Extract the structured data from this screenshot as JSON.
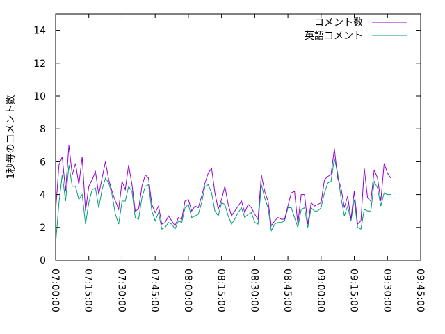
{
  "chart_data": {
    "type": "line",
    "title": "",
    "xlabel": "",
    "ylabel": "1秒毎のコメント数",
    "xlim": [
      "07:00:00",
      "09:45:00"
    ],
    "ylim": [
      0,
      15
    ],
    "x_ticks": [
      "07:00:00",
      "07:15:00",
      "07:30:00",
      "07:45:00",
      "08:00:00",
      "08:15:00",
      "08:30:00",
      "08:45:00",
      "09:00:00",
      "09:15:00",
      "09:30:00",
      "09:45:00"
    ],
    "y_ticks": [
      0,
      2,
      4,
      6,
      8,
      10,
      12,
      14
    ],
    "legend_position": "top-right",
    "grid": false,
    "series": [
      {
        "name": "コメント数",
        "color": "#9400d3",
        "x": [
          "07:00:00",
          "07:01:30",
          "07:03:00",
          "07:04:30",
          "07:06:00",
          "07:07:30",
          "07:09:00",
          "07:10:30",
          "07:12:00",
          "07:13:30",
          "07:15:00",
          "07:16:30",
          "07:18:00",
          "07:19:30",
          "07:21:00",
          "07:22:30",
          "07:24:00",
          "07:25:30",
          "07:27:00",
          "07:28:30",
          "07:30:00",
          "07:31:30",
          "07:33:00",
          "07:34:30",
          "07:36:00",
          "07:37:30",
          "07:39:00",
          "07:40:30",
          "07:42:00",
          "07:43:30",
          "07:45:00",
          "07:46:30",
          "07:48:00",
          "07:49:30",
          "07:51:00",
          "07:52:30",
          "07:54:00",
          "07:55:30",
          "07:57:00",
          "07:58:30",
          "08:00:00",
          "08:01:30",
          "08:03:00",
          "08:04:30",
          "08:06:00",
          "08:07:30",
          "08:09:00",
          "08:10:30",
          "08:12:00",
          "08:13:30",
          "08:15:00",
          "08:16:30",
          "08:18:00",
          "08:19:30",
          "08:21:00",
          "08:22:30",
          "08:24:00",
          "08:25:30",
          "08:27:00",
          "08:28:30",
          "08:30:00",
          "08:31:30",
          "08:33:00",
          "08:34:30",
          "08:36:00",
          "08:37:30",
          "08:39:00",
          "08:40:30",
          "08:42:00",
          "08:43:30",
          "08:45:00",
          "08:46:30",
          "08:48:00",
          "08:49:30",
          "08:51:00",
          "08:52:30",
          "08:54:00",
          "08:55:30",
          "08:57:00",
          "08:58:30",
          "09:00:00",
          "09:01:30",
          "09:03:00",
          "09:04:30",
          "09:06:00",
          "09:07:30",
          "09:09:00",
          "09:10:30",
          "09:12:00",
          "09:13:30",
          "09:15:00",
          "09:16:30",
          "09:18:00",
          "09:19:30",
          "09:21:00",
          "09:22:30",
          "09:24:00",
          "09:25:30",
          "09:27:00",
          "09:28:30",
          "09:30:00",
          "09:31:30"
        ],
        "values": [
          3.0,
          5.8,
          6.3,
          4.2,
          7.0,
          5.2,
          5.9,
          4.6,
          6.3,
          3.0,
          4.5,
          4.9,
          5.4,
          4.0,
          5.0,
          6.0,
          4.9,
          4.2,
          3.6,
          3.1,
          4.8,
          4.3,
          5.8,
          4.6,
          3.0,
          3.1,
          4.5,
          5.2,
          5.0,
          3.4,
          2.9,
          3.3,
          2.2,
          2.3,
          2.7,
          2.4,
          2.1,
          2.6,
          2.5,
          3.6,
          3.7,
          3.0,
          3.3,
          3.2,
          3.9,
          4.7,
          5.3,
          5.6,
          4.1,
          3.1,
          3.7,
          4.5,
          3.4,
          2.7,
          3.0,
          3.3,
          3.6,
          2.9,
          3.4,
          3.2,
          2.8,
          2.5,
          5.2,
          4.2,
          3.6,
          2.1,
          2.4,
          2.6,
          2.5,
          2.5,
          3.3,
          4.1,
          4.2,
          2.2,
          4.0,
          4.0,
          2.2,
          3.5,
          3.3,
          3.4,
          3.5,
          4.9,
          5.1,
          5.2,
          6.8,
          5.0,
          4.4,
          3.2,
          3.9,
          2.5,
          4.2,
          2.2,
          2.4,
          5.6,
          3.8,
          3.6,
          5.5,
          5.0,
          3.6,
          5.9,
          5.3,
          5.0
        ]
      },
      {
        "name": "英語コメント",
        "color": "#009e73",
        "x": [
          "07:00:00",
          "07:01:30",
          "07:03:00",
          "07:04:30",
          "07:06:00",
          "07:07:30",
          "07:09:00",
          "07:10:30",
          "07:12:00",
          "07:13:30",
          "07:15:00",
          "07:16:30",
          "07:18:00",
          "07:19:30",
          "07:21:00",
          "07:22:30",
          "07:24:00",
          "07:25:30",
          "07:27:00",
          "07:28:30",
          "07:30:00",
          "07:31:30",
          "07:33:00",
          "07:34:30",
          "07:36:00",
          "07:37:30",
          "07:39:00",
          "07:40:30",
          "07:42:00",
          "07:43:30",
          "07:45:00",
          "07:46:30",
          "07:48:00",
          "07:49:30",
          "07:51:00",
          "07:52:30",
          "07:54:00",
          "07:55:30",
          "07:57:00",
          "07:58:30",
          "08:00:00",
          "08:01:30",
          "08:03:00",
          "08:04:30",
          "08:06:00",
          "08:07:30",
          "08:09:00",
          "08:10:30",
          "08:12:00",
          "08:13:30",
          "08:15:00",
          "08:16:30",
          "08:18:00",
          "08:19:30",
          "08:21:00",
          "08:22:30",
          "08:24:00",
          "08:25:30",
          "08:27:00",
          "08:28:30",
          "08:30:00",
          "08:31:30",
          "08:33:00",
          "08:34:30",
          "08:36:00",
          "08:37:30",
          "08:39:00",
          "08:40:30",
          "08:42:00",
          "08:43:30",
          "08:45:00",
          "08:46:30",
          "08:48:00",
          "08:49:30",
          "08:51:00",
          "08:52:30",
          "08:54:00",
          "08:55:30",
          "08:57:00",
          "08:58:30",
          "09:00:00",
          "09:01:30",
          "09:03:00",
          "09:04:30",
          "09:06:00",
          "09:07:30",
          "09:09:00",
          "09:10:30",
          "09:12:00",
          "09:13:30",
          "09:15:00",
          "09:16:30",
          "09:18:00",
          "09:19:30",
          "09:21:00",
          "09:22:30",
          "09:24:00",
          "09:25:30",
          "09:27:00",
          "09:28:30",
          "09:30:00",
          "09:31:30"
        ],
        "values": [
          1.0,
          3.5,
          5.2,
          3.6,
          5.8,
          4.5,
          4.5,
          3.7,
          4.0,
          2.2,
          3.5,
          4.3,
          4.4,
          3.2,
          4.3,
          5.0,
          4.7,
          4.0,
          2.8,
          2.2,
          3.6,
          3.6,
          4.5,
          4.2,
          2.6,
          2.5,
          3.8,
          4.5,
          4.6,
          3.0,
          2.4,
          2.9,
          1.9,
          2.0,
          2.3,
          2.2,
          1.9,
          2.4,
          2.3,
          3.2,
          3.4,
          2.6,
          2.7,
          2.8,
          3.5,
          4.5,
          4.6,
          4.1,
          3.0,
          2.7,
          3.5,
          3.4,
          2.7,
          2.2,
          2.5,
          2.9,
          3.2,
          2.6,
          2.8,
          2.9,
          2.3,
          2.2,
          4.6,
          3.8,
          3.2,
          1.8,
          2.2,
          2.3,
          2.3,
          2.4,
          3.2,
          3.2,
          2.6,
          2.0,
          3.1,
          3.2,
          2.0,
          3.2,
          3.0,
          3.0,
          3.2,
          4.1,
          4.7,
          4.8,
          6.2,
          5.3,
          3.8,
          2.7,
          3.3,
          2.4,
          3.7,
          2.0,
          1.9,
          3.1,
          3.0,
          3.0,
          4.8,
          4.4,
          3.3,
          4.1,
          4.0,
          4.0
        ]
      }
    ]
  }
}
